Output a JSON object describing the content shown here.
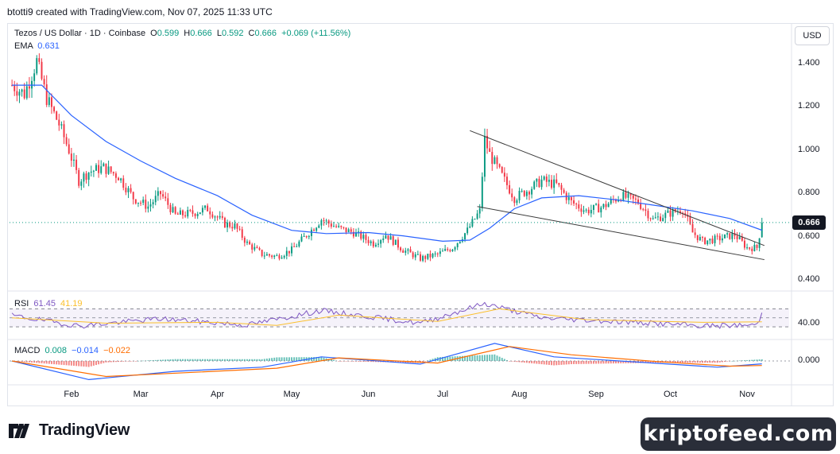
{
  "header": {
    "created_by": "btotti9 created with TradingView.com, Nov 07, 2025 11:33 UTC"
  },
  "legend": {
    "symbol": "Tezos / US Dollar · 1D · Coinbase",
    "o_label": "O",
    "o": "0.599",
    "h_label": "H",
    "h": "0.666",
    "l_label": "L",
    "l": "0.592",
    "c_label": "C",
    "c": "0.666",
    "change": "+0.069 (+11.56%)",
    "ema_label": "EMA",
    "ema_value": "0.631",
    "rsi_label": "RSI",
    "rsi_value": "61.45",
    "rsi_ma_value": "41.19",
    "macd_label": "MACD",
    "macd_hist": "0.008",
    "macd_line": "−0.014",
    "macd_signal": "−0.022"
  },
  "currency_button": "USD",
  "last_price_label": "0.666",
  "brand": {
    "name": "TradingView",
    "watermark": "kriptofeed.com"
  },
  "colors": {
    "up": "#089981",
    "down": "#f23645",
    "ema": "#2962ff",
    "rsi": "#7e57c2",
    "rsi_ma": "#fbc02d",
    "macd": "#2962ff",
    "signal": "#ff6d00",
    "trendline": "#3a3a3a"
  },
  "chart_data": [
    {
      "type": "candlestick",
      "title": "Tezos / US Dollar · 1D · Coinbase",
      "yticks": [
        "1.400",
        "1.200",
        "1.000",
        "0.800",
        "0.600",
        "0.400"
      ],
      "ylim": [
        0.365,
        1.48
      ],
      "xticks": [
        "Feb",
        "Mar",
        "Apr",
        "May",
        "Jun",
        "Jul",
        "Aug",
        "Sep",
        "Oct",
        "Nov"
      ],
      "close_path": [
        [
          "Jan 08",
          1.3
        ],
        [
          "Jan 13",
          1.26
        ],
        [
          "Jan 18",
          1.41
        ],
        [
          "Jan 22",
          1.24
        ],
        [
          "Jan 27",
          1.12
        ],
        [
          "Jan 31",
          1.0
        ],
        [
          "Feb 04",
          0.86
        ],
        [
          "Feb 08",
          0.9
        ],
        [
          "Feb 14",
          0.92
        ],
        [
          "Feb 20",
          0.88
        ],
        [
          "Feb 26",
          0.78
        ],
        [
          "Mar 04",
          0.74
        ],
        [
          "Mar 09",
          0.8
        ],
        [
          "Mar 15",
          0.7
        ],
        [
          "Mar 22",
          0.71
        ],
        [
          "Mar 28",
          0.73
        ],
        [
          "Apr 04",
          0.66
        ],
        [
          "Apr 08",
          0.65
        ],
        [
          "Apr 13",
          0.57
        ],
        [
          "Apr 19",
          0.52
        ],
        [
          "Apr 25",
          0.51
        ],
        [
          "May 01",
          0.54
        ],
        [
          "May 08",
          0.62
        ],
        [
          "May 13",
          0.68
        ],
        [
          "May 20",
          0.64
        ],
        [
          "May 26",
          0.62
        ],
        [
          "Jun 03",
          0.57
        ],
        [
          "Jun 08",
          0.61
        ],
        [
          "Jun 15",
          0.54
        ],
        [
          "Jun 22",
          0.5
        ],
        [
          "Jun 29",
          0.52
        ],
        [
          "Jul 05",
          0.55
        ],
        [
          "Jul 11",
          0.63
        ],
        [
          "Jul 16",
          0.72
        ],
        [
          "Jul 18",
          1.05
        ],
        [
          "Jul 20",
          0.98
        ],
        [
          "Jul 24",
          0.9
        ],
        [
          "Jul 30",
          0.78
        ],
        [
          "Aug 05",
          0.82
        ],
        [
          "Aug 10",
          0.86
        ],
        [
          "Aug 16",
          0.84
        ],
        [
          "Aug 22",
          0.76
        ],
        [
          "Aug 28",
          0.72
        ],
        [
          "Sep 04",
          0.74
        ],
        [
          "Sep 11",
          0.79
        ],
        [
          "Sep 18",
          0.76
        ],
        [
          "Sep 24",
          0.68
        ],
        [
          "Oct 01",
          0.71
        ],
        [
          "Oct 06",
          0.73
        ],
        [
          "Oct 10",
          0.62
        ],
        [
          "Oct 14",
          0.58
        ],
        [
          "Oct 20",
          0.59
        ],
        [
          "Oct 27",
          0.61
        ],
        [
          "Nov 01",
          0.55
        ],
        [
          "Nov 05",
          0.55
        ],
        [
          "Nov 07",
          0.666
        ]
      ],
      "ema": [
        [
          "Jan 08",
          1.3
        ],
        [
          "Jan 20",
          1.3
        ],
        [
          "Feb 01",
          1.16
        ],
        [
          "Feb 15",
          1.04
        ],
        [
          "Mar 01",
          0.95
        ],
        [
          "Mar 15",
          0.87
        ],
        [
          "Apr 01",
          0.79
        ],
        [
          "Apr 15",
          0.7
        ],
        [
          "May 01",
          0.63
        ],
        [
          "May 15",
          0.615
        ],
        [
          "Jun 01",
          0.62
        ],
        [
          "Jun 15",
          0.605
        ],
        [
          "Jul 01",
          0.58
        ],
        [
          "Jul 12",
          0.585
        ],
        [
          "Jul 20",
          0.64
        ],
        [
          "Jul 30",
          0.73
        ],
        [
          "Aug 10",
          0.78
        ],
        [
          "Aug 25",
          0.79
        ],
        [
          "Sep 10",
          0.77
        ],
        [
          "Sep 25",
          0.745
        ],
        [
          "Oct 10",
          0.72
        ],
        [
          "Oct 25",
          0.685
        ],
        [
          "Nov 07",
          0.631
        ]
      ],
      "trendlines": [
        {
          "start": [
            "Jul 12",
            1.09
          ],
          "end": [
            "Nov 08",
            0.56
          ]
        },
        {
          "start": [
            "Jul 15",
            0.74
          ],
          "end": [
            "Nov 08",
            0.495
          ]
        }
      ],
      "last_price": 0.666
    },
    {
      "type": "line",
      "title": "RSI",
      "yticks": [
        "40.00"
      ],
      "guides": [
        70,
        50,
        30
      ],
      "series": [
        {
          "name": "RSI",
          "values": [
            [
              "Jan 08",
              55
            ],
            [
              "Feb 04",
              32
            ],
            [
              "Mar 09",
              48
            ],
            [
              "Apr 13",
              34
            ],
            [
              "May 13",
              66
            ],
            [
              "Jun 22",
              38
            ],
            [
              "Jul 18",
              82
            ],
            [
              "Aug 10",
              50
            ],
            [
              "Sep 24",
              38
            ],
            [
              "Oct 14",
              32
            ],
            [
              "Nov 05",
              34
            ],
            [
              "Nov 07",
              61.45
            ]
          ]
        },
        {
          "name": "RSI MA",
          "values": [
            [
              "Jan 08",
              50
            ],
            [
              "Feb 15",
              38
            ],
            [
              "Apr 01",
              40
            ],
            [
              "Apr 25",
              33
            ],
            [
              "May 20",
              56
            ],
            [
              "Jun 29",
              42
            ],
            [
              "Jul 24",
              70
            ],
            [
              "Aug 28",
              46
            ],
            [
              "Oct 14",
              40
            ],
            [
              "Nov 07",
              41.19
            ]
          ]
        }
      ]
    },
    {
      "type": "line",
      "title": "MACD",
      "yticks": [
        "0.000"
      ],
      "series": [
        {
          "name": "MACD",
          "values": [
            [
              "Jan 08",
              0.0
            ],
            [
              "Feb 08",
              -0.09
            ],
            [
              "Mar 15",
              -0.05
            ],
            [
              "Apr 19",
              -0.03
            ],
            [
              "May 13",
              0.02
            ],
            [
              "Jun 22",
              -0.015
            ],
            [
              "Jul 22",
              0.085
            ],
            [
              "Aug 15",
              0.02
            ],
            [
              "Sep 24",
              -0.01
            ],
            [
              "Oct 20",
              -0.03
            ],
            [
              "Nov 07",
              -0.014
            ]
          ]
        },
        {
          "name": "Signal",
          "values": [
            [
              "Jan 08",
              0.0
            ],
            [
              "Feb 15",
              -0.075
            ],
            [
              "Mar 22",
              -0.055
            ],
            [
              "Apr 25",
              -0.035
            ],
            [
              "May 20",
              0.015
            ],
            [
              "Jun 29",
              -0.01
            ],
            [
              "Jul 28",
              0.07
            ],
            [
              "Aug 22",
              0.03
            ],
            [
              "Sep 28",
              -0.005
            ],
            [
              "Oct 25",
              -0.025
            ],
            [
              "Nov 07",
              -0.022
            ]
          ]
        }
      ]
    }
  ]
}
